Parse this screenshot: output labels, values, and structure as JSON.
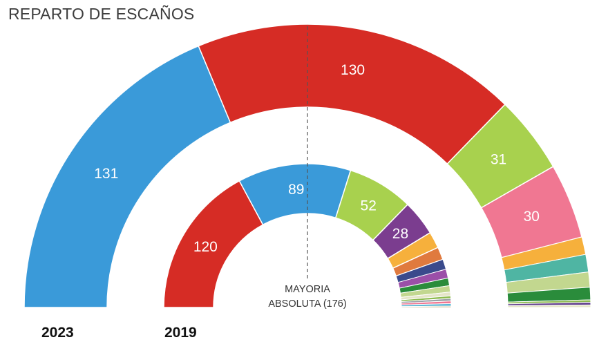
{
  "title": "REPARTO DE ESCAÑOS",
  "majority": {
    "line1": "MAYORIA",
    "line2": "ABSOLUTA (176)"
  },
  "chart_data": [
    {
      "type": "pie",
      "year": "2023",
      "total": 350,
      "colors": [
        "#3a9ad9",
        "#d62c25",
        "#a8d14e",
        "#f07792",
        "#f6b03c",
        "#4fb5a3",
        "#c2d78f",
        "#2a8c3b",
        "#8dbb4f",
        "#5e3b8a",
        "#e5e5c8",
        "#9aa0a6"
      ],
      "segments": [
        {
          "label": "131",
          "value": 131
        },
        {
          "label": "130",
          "value": 130
        },
        {
          "label": "31",
          "value": 31
        },
        {
          "label": "30",
          "value": 30
        },
        {
          "label": "",
          "value": 7
        },
        {
          "label": "",
          "value": 7
        },
        {
          "label": "",
          "value": 6
        },
        {
          "label": "",
          "value": 5
        },
        {
          "label": "",
          "value": 1
        },
        {
          "label": "",
          "value": 1
        },
        {
          "label": "",
          "value": 1
        }
      ]
    },
    {
      "type": "pie",
      "year": "2019",
      "total": 350,
      "colors": [
        "#d62c25",
        "#3a9ad9",
        "#a8d14e",
        "#7b3d8f",
        "#f6b03c",
        "#e07a3e",
        "#3a4a8c",
        "#9b4fa8",
        "#2a8c3b",
        "#c2d78f",
        "#e5e5c8",
        "#8dbb4f",
        "#9aa0a6",
        "#f07792",
        "#5ab7d4",
        "#b7a36a"
      ],
      "segments": [
        {
          "label": "120",
          "value": 120
        },
        {
          "label": "89",
          "value": 89
        },
        {
          "label": "52",
          "value": 52
        },
        {
          "label": "28",
          "value": 28
        },
        {
          "label": "",
          "value": 13
        },
        {
          "label": "",
          "value": 10
        },
        {
          "label": "",
          "value": 8
        },
        {
          "label": "",
          "value": 7
        },
        {
          "label": "",
          "value": 6
        },
        {
          "label": "",
          "value": 5
        },
        {
          "label": "",
          "value": 3
        },
        {
          "label": "",
          "value": 2
        },
        {
          "label": "",
          "value": 2
        },
        {
          "label": "",
          "value": 2
        },
        {
          "label": "",
          "value": 2
        },
        {
          "label": "",
          "value": 1
        }
      ]
    }
  ]
}
